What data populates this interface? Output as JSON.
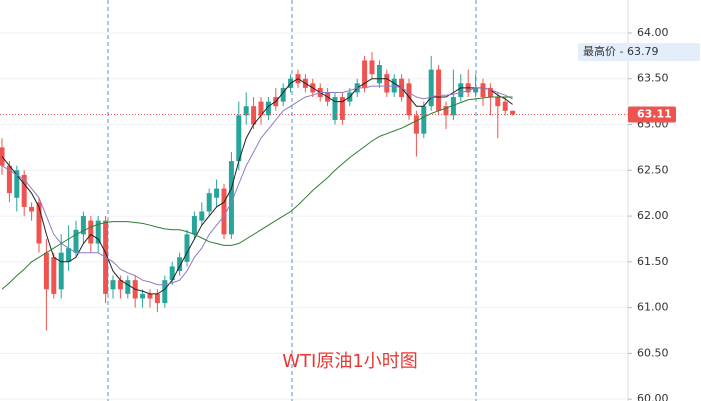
{
  "chart_data": {
    "type": "candlestick",
    "annotation": "WTI原油1小时图",
    "up_color": "#26a69a",
    "down_color": "#ef5350",
    "ylim": [
      59.98,
      64.36
    ],
    "yticks": [
      {
        "value": 60,
        "label": "60.00"
      },
      {
        "value": 60.5,
        "label": "60.50"
      },
      {
        "value": 61,
        "label": "61.00"
      },
      {
        "value": 61.5,
        "label": "61.50"
      },
      {
        "value": 62,
        "label": "62.00"
      },
      {
        "value": 62.5,
        "label": "62.50"
      },
      {
        "value": 63,
        "label": "63.00"
      },
      {
        "value": 63.5,
        "label": "63.50"
      },
      {
        "value": 64,
        "label": "64.00"
      }
    ],
    "grid": true,
    "last_price": 63.11,
    "high_marker": {
      "value": 63.79,
      "label": "最高价 - 63.79"
    },
    "open": [
      62.75,
      62.55,
      62.2,
      62.45,
      62.1,
      62.15,
      61.6,
      61.55,
      61.2,
      61.5,
      61.6,
      61.8,
      61.95,
      61.7,
      61.95,
      61.2,
      61.3,
      61.15,
      61.3,
      61.1,
      61.15,
      61.15,
      61.05,
      61.3,
      61.4,
      61.5,
      61.8,
      61.95,
      62.05,
      62.2,
      62.3,
      61.8,
      62.6,
      63.1,
      63.2,
      63.25,
      63.1,
      63.3,
      63.25,
      63.4,
      63.55,
      63.5,
      63.45,
      63.4,
      63.35,
      63.05,
      63.3,
      63.25,
      63.35,
      63.7,
      63.7,
      63.45,
      63.55,
      63.35,
      63.5,
      63.45,
      63.1,
      62.9,
      63.2,
      63.6,
      63.2,
      63.1,
      63.3,
      63.45,
      63.35,
      63.45,
      63.4,
      63.3,
      63.25,
      63.15
    ],
    "high": [
      62.85,
      62.6,
      62.55,
      62.5,
      62.15,
      62.2,
      61.75,
      61.6,
      61.8,
      61.9,
      61.95,
      62.05,
      62.0,
      62.0,
      62.0,
      61.35,
      61.35,
      61.35,
      61.35,
      61.2,
      61.2,
      61.2,
      61.35,
      61.5,
      61.6,
      61.85,
      62.05,
      62.15,
      62.3,
      62.4,
      62.35,
      62.7,
      63.25,
      63.35,
      63.3,
      63.3,
      63.3,
      63.4,
      63.45,
      63.55,
      63.6,
      63.55,
      63.5,
      63.45,
      63.4,
      63.35,
      63.35,
      63.4,
      63.5,
      63.75,
      63.79,
      63.7,
      63.6,
      63.55,
      63.55,
      63.5,
      63.15,
      63.25,
      63.75,
      63.65,
      63.25,
      63.6,
      63.55,
      63.6,
      63.55,
      63.5,
      63.45,
      63.35,
      63.3,
      63.15
    ],
    "low": [
      62.45,
      62.15,
      62.05,
      62.0,
      61.95,
      61.6,
      60.75,
      61.1,
      61.1,
      61.4,
      61.55,
      61.7,
      61.6,
      61.6,
      61.05,
      61.1,
      61.1,
      61.1,
      61.0,
      61.0,
      61.0,
      60.95,
      61.0,
      61.25,
      61.35,
      61.45,
      61.75,
      61.9,
      62.0,
      62.1,
      61.75,
      61.75,
      62.5,
      63.0,
      62.95,
      63.0,
      63.05,
      63.15,
      63.2,
      63.35,
      63.4,
      63.35,
      63.3,
      63.25,
      63.2,
      63.0,
      63.0,
      63.2,
      63.3,
      63.35,
      63.5,
      63.4,
      63.3,
      63.3,
      63.25,
      63.05,
      62.65,
      62.85,
      63.15,
      63.1,
      62.95,
      63.05,
      63.25,
      63.3,
      63.3,
      63.2,
      63.1,
      62.85,
      63.1,
      63.1
    ],
    "close": [
      62.55,
      62.25,
      62.5,
      62.1,
      62.05,
      61.7,
      61.2,
      61.15,
      61.6,
      61.65,
      61.85,
      62.0,
      61.7,
      61.95,
      61.15,
      61.3,
      61.2,
      61.3,
      61.1,
      61.15,
      61.1,
      61.05,
      61.3,
      61.45,
      61.55,
      61.8,
      62.0,
      62.05,
      62.25,
      62.3,
      61.8,
      62.6,
      63.1,
      63.2,
      63.0,
      63.1,
      63.25,
      63.2,
      63.4,
      63.5,
      63.45,
      63.4,
      63.35,
      63.3,
      63.25,
      63.3,
      63.05,
      63.35,
      63.45,
      63.4,
      63.55,
      63.65,
      63.35,
      63.5,
      63.3,
      63.1,
      62.9,
      63.2,
      63.6,
      63.15,
      63.1,
      63.3,
      63.45,
      63.35,
      63.4,
      63.3,
      63.3,
      63.2,
      63.15,
      63.11
    ],
    "series": [
      {
        "color": "#222222",
        "values": [
          62.65,
          62.55,
          62.45,
          62.35,
          62.25,
          62.1,
          61.8,
          61.55,
          61.5,
          61.5,
          61.55,
          61.7,
          61.8,
          61.75,
          61.6,
          61.4,
          61.3,
          61.25,
          61.2,
          61.18,
          61.15,
          61.15,
          61.2,
          61.3,
          61.45,
          61.6,
          61.75,
          61.9,
          62.0,
          62.1,
          62.15,
          62.3,
          62.6,
          62.85,
          63.0,
          63.1,
          63.2,
          63.25,
          63.35,
          63.45,
          63.5,
          63.45,
          63.4,
          63.35,
          63.3,
          63.25,
          63.25,
          63.3,
          63.4,
          63.45,
          63.5,
          63.5,
          63.5,
          63.45,
          63.4,
          63.3,
          63.2,
          63.2,
          63.3,
          63.3,
          63.3,
          63.35,
          63.4,
          63.4,
          63.4,
          63.4,
          63.38,
          63.32,
          63.28,
          63.22
        ]
      },
      {
        "color": "#8e7cc3",
        "values": [
          62.55,
          62.5,
          62.45,
          62.4,
          62.3,
          62.2,
          62.0,
          61.8,
          61.7,
          61.65,
          61.6,
          61.6,
          61.6,
          61.6,
          61.55,
          61.5,
          61.42,
          61.38,
          61.35,
          61.3,
          61.28,
          61.25,
          61.25,
          61.27,
          61.3,
          61.4,
          61.55,
          61.65,
          61.8,
          61.9,
          62.0,
          62.15,
          62.35,
          62.55,
          62.7,
          62.85,
          62.95,
          63.05,
          63.15,
          63.2,
          63.25,
          63.3,
          63.32,
          63.35,
          63.35,
          63.35,
          63.35,
          63.37,
          63.4,
          63.4,
          63.42,
          63.42,
          63.42,
          63.42,
          63.4,
          63.35,
          63.3,
          63.28,
          63.3,
          63.32,
          63.32,
          63.33,
          63.35,
          63.37,
          63.4,
          63.4,
          63.38,
          63.35,
          63.32,
          63.28
        ]
      },
      {
        "color": "#2e7d32",
        "values": [
          61.2,
          61.27,
          61.35,
          61.42,
          61.5,
          61.55,
          61.6,
          61.65,
          61.7,
          61.75,
          61.8,
          61.84,
          61.88,
          61.91,
          61.93,
          61.94,
          61.94,
          61.94,
          61.93,
          61.92,
          61.9,
          61.88,
          61.86,
          61.85,
          61.85,
          61.83,
          61.8,
          61.76,
          61.72,
          61.7,
          61.68,
          61.68,
          61.7,
          61.75,
          61.8,
          61.85,
          61.9,
          61.95,
          62.0,
          62.05,
          62.12,
          62.2,
          62.28,
          62.35,
          62.42,
          62.5,
          62.57,
          62.64,
          62.7,
          62.76,
          62.82,
          62.87,
          62.9,
          62.93,
          62.96,
          63.0,
          63.04,
          63.08,
          63.12,
          63.15,
          63.18,
          63.21,
          63.24,
          63.27,
          63.28,
          63.29,
          63.3,
          63.3,
          63.3,
          63.3
        ]
      }
    ]
  }
}
